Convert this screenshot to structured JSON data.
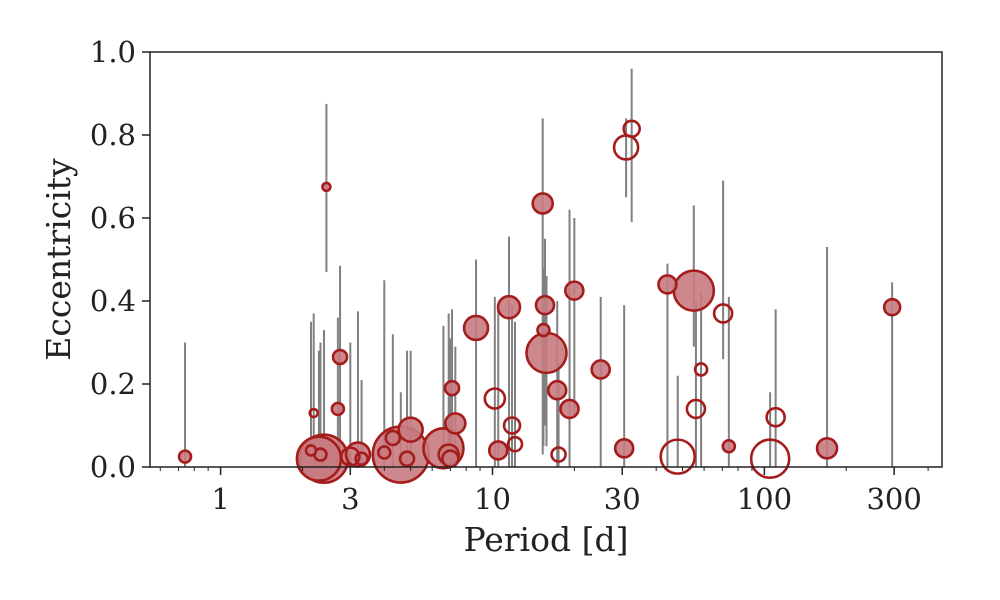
{
  "chart_data": {
    "type": "scatter",
    "title": "",
    "xlabel": "Period [d]",
    "ylabel": "Eccentricity",
    "xscale": "log",
    "xlim": [
      0.55,
      450
    ],
    "ylim": [
      0,
      1.0
    ],
    "xticks": [
      {
        "value": 1,
        "label": "1"
      },
      {
        "value": 3,
        "label": "3"
      },
      {
        "value": 10,
        "label": "10"
      },
      {
        "value": 30,
        "label": "30"
      },
      {
        "value": 100,
        "label": "100"
      },
      {
        "value": 300,
        "label": "300"
      }
    ],
    "yticks": [
      {
        "value": 0.0,
        "label": "0.0"
      },
      {
        "value": 0.2,
        "label": "0.2"
      },
      {
        "value": 0.4,
        "label": "0.4"
      },
      {
        "value": 0.6,
        "label": "0.6"
      },
      {
        "value": 0.8,
        "label": "0.8"
      },
      {
        "value": 1.0,
        "label": "1.0"
      }
    ],
    "grid": false,
    "legend": "none",
    "marker_color": "#a51c1c",
    "filled_color": "#c77b80",
    "errorbar_color": "#808080",
    "points": [
      {
        "x": 0.74,
        "y": 0.025,
        "lo": 0.0,
        "hi": 0.3,
        "size": 6,
        "filled": true
      },
      {
        "x": 2.2,
        "y": 0.13,
        "lo": 0.05,
        "hi": 0.37,
        "size": 4,
        "filled": false
      },
      {
        "x": 2.15,
        "y": 0.04,
        "lo": 0.0,
        "hi": 0.35,
        "size": 5,
        "filled": true
      },
      {
        "x": 2.3,
        "y": 0.02,
        "lo": 0.0,
        "hi": 0.28,
        "size": 22,
        "filled": true
      },
      {
        "x": 2.4,
        "y": 0.02,
        "lo": 0.0,
        "hi": 0.33,
        "size": 24,
        "filled": true
      },
      {
        "x": 2.33,
        "y": 0.03,
        "lo": 0.0,
        "hi": 0.3,
        "size": 6,
        "filled": true
      },
      {
        "x": 2.45,
        "y": 0.675,
        "lo": 0.47,
        "hi": 0.875,
        "size": 4,
        "filled": true
      },
      {
        "x": 2.7,
        "y": 0.14,
        "lo": 0.0,
        "hi": 0.36,
        "size": 6,
        "filled": true
      },
      {
        "x": 2.75,
        "y": 0.265,
        "lo": 0.0,
        "hi": 0.485,
        "size": 7,
        "filled": true
      },
      {
        "x": 3.0,
        "y": 0.025,
        "lo": 0.0,
        "hi": 0.3,
        "size": 9,
        "filled": false
      },
      {
        "x": 3.2,
        "y": 0.03,
        "lo": 0.0,
        "hi": 0.375,
        "size": 12,
        "filled": true
      },
      {
        "x": 3.3,
        "y": 0.02,
        "lo": 0.0,
        "hi": 0.21,
        "size": 6,
        "filled": false
      },
      {
        "x": 4.0,
        "y": 0.035,
        "lo": 0.0,
        "hi": 0.45,
        "size": 6,
        "filled": true
      },
      {
        "x": 4.3,
        "y": 0.07,
        "lo": 0.0,
        "hi": 0.32,
        "size": 7,
        "filled": true
      },
      {
        "x": 4.6,
        "y": 0.03,
        "lo": 0.0,
        "hi": 0.18,
        "size": 28,
        "filled": true
      },
      {
        "x": 4.85,
        "y": 0.02,
        "lo": 0.0,
        "hi": 0.28,
        "size": 7,
        "filled": true
      },
      {
        "x": 5.0,
        "y": 0.09,
        "lo": 0.0,
        "hi": 0.28,
        "size": 12,
        "filled": true
      },
      {
        "x": 6.6,
        "y": 0.045,
        "lo": 0.0,
        "hi": 0.34,
        "size": 20,
        "filled": true
      },
      {
        "x": 6.9,
        "y": 0.03,
        "lo": 0.0,
        "hi": 0.37,
        "size": 10,
        "filled": true
      },
      {
        "x": 7.0,
        "y": 0.02,
        "lo": 0.0,
        "hi": 0.31,
        "size": 8,
        "filled": true
      },
      {
        "x": 7.1,
        "y": 0.19,
        "lo": 0.0,
        "hi": 0.38,
        "size": 7,
        "filled": true
      },
      {
        "x": 7.3,
        "y": 0.105,
        "lo": 0.0,
        "hi": 0.29,
        "size": 10,
        "filled": true
      },
      {
        "x": 8.7,
        "y": 0.335,
        "lo": 0.0,
        "hi": 0.5,
        "size": 12,
        "filled": true
      },
      {
        "x": 10.2,
        "y": 0.165,
        "lo": 0.0,
        "hi": 0.41,
        "size": 10,
        "filled": false
      },
      {
        "x": 10.5,
        "y": 0.04,
        "lo": 0.0,
        "hi": 0.39,
        "size": 9,
        "filled": true
      },
      {
        "x": 11.5,
        "y": 0.385,
        "lo": 0.0,
        "hi": 0.555,
        "size": 11,
        "filled": true
      },
      {
        "x": 11.8,
        "y": 0.1,
        "lo": 0.0,
        "hi": 0.39,
        "size": 8,
        "filled": false
      },
      {
        "x": 12.1,
        "y": 0.055,
        "lo": 0.0,
        "hi": 0.35,
        "size": 7,
        "filled": false
      },
      {
        "x": 15.3,
        "y": 0.635,
        "lo": 0.03,
        "hi": 0.84,
        "size": 10,
        "filled": true
      },
      {
        "x": 15.4,
        "y": 0.33,
        "lo": 0.05,
        "hi": 0.48,
        "size": 6,
        "filled": true
      },
      {
        "x": 15.6,
        "y": 0.39,
        "lo": 0.1,
        "hi": 0.55,
        "size": 9,
        "filled": true
      },
      {
        "x": 15.8,
        "y": 0.275,
        "lo": 0.05,
        "hi": 0.46,
        "size": 20,
        "filled": true
      },
      {
        "x": 17.3,
        "y": 0.185,
        "lo": 0.0,
        "hi": 0.4,
        "size": 9,
        "filled": true
      },
      {
        "x": 17.5,
        "y": 0.03,
        "lo": 0.0,
        "hi": 0.25,
        "size": 7,
        "filled": false
      },
      {
        "x": 19.2,
        "y": 0.14,
        "lo": 0.0,
        "hi": 0.62,
        "size": 9,
        "filled": true
      },
      {
        "x": 20.0,
        "y": 0.425,
        "lo": 0.12,
        "hi": 0.6,
        "size": 9,
        "filled": true
      },
      {
        "x": 25.0,
        "y": 0.235,
        "lo": 0.0,
        "hi": 0.41,
        "size": 9,
        "filled": true
      },
      {
        "x": 30.5,
        "y": 0.045,
        "lo": 0.0,
        "hi": 0.39,
        "size": 9,
        "filled": true
      },
      {
        "x": 31.0,
        "y": 0.77,
        "lo": 0.65,
        "hi": 0.84,
        "size": 12,
        "filled": false
      },
      {
        "x": 32.5,
        "y": 0.815,
        "lo": 0.59,
        "hi": 0.96,
        "size": 8,
        "filled": false
      },
      {
        "x": 44.0,
        "y": 0.44,
        "lo": 0.0,
        "hi": 0.49,
        "size": 9,
        "filled": true
      },
      {
        "x": 48.0,
        "y": 0.025,
        "lo": 0.0,
        "hi": 0.22,
        "size": 17,
        "filled": false
      },
      {
        "x": 55.0,
        "y": 0.425,
        "lo": 0.29,
        "hi": 0.63,
        "size": 20,
        "filled": true
      },
      {
        "x": 56.0,
        "y": 0.14,
        "lo": 0.0,
        "hi": 0.4,
        "size": 9,
        "filled": false
      },
      {
        "x": 58.5,
        "y": 0.235,
        "lo": 0.0,
        "hi": 0.42,
        "size": 6,
        "filled": false
      },
      {
        "x": 70.5,
        "y": 0.37,
        "lo": 0.26,
        "hi": 0.69,
        "size": 9,
        "filled": false
      },
      {
        "x": 74.0,
        "y": 0.05,
        "lo": 0.0,
        "hi": 0.41,
        "size": 6,
        "filled": true
      },
      {
        "x": 105.0,
        "y": 0.02,
        "lo": 0.0,
        "hi": 0.18,
        "size": 19,
        "filled": false
      },
      {
        "x": 110.0,
        "y": 0.12,
        "lo": 0.0,
        "hi": 0.38,
        "size": 9,
        "filled": false
      },
      {
        "x": 170.0,
        "y": 0.045,
        "lo": 0.0,
        "hi": 0.53,
        "size": 10,
        "filled": true
      },
      {
        "x": 295.0,
        "y": 0.385,
        "lo": 0.0,
        "hi": 0.445,
        "size": 8,
        "filled": true
      }
    ]
  }
}
